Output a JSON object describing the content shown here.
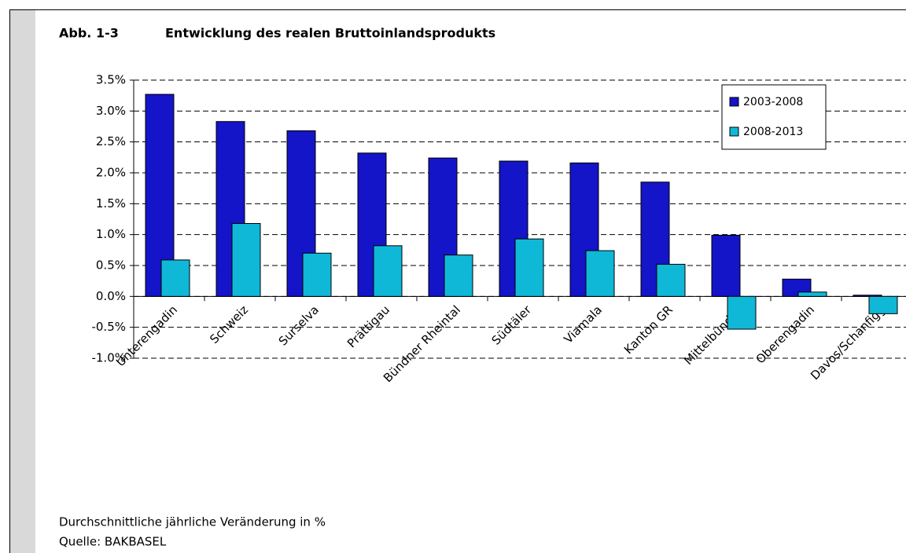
{
  "chart_data": {
    "type": "bar",
    "figure_label": "Abb. 1-3",
    "title": "Entwicklung des realen Bruttoinlandsprodukts",
    "categories": [
      "Unterengadin",
      "Schweiz",
      "Surselva",
      "Prättigau",
      "Bündner Rheintal",
      "Südtäler",
      "Viamala",
      "Kanton GR",
      "Mittelbünden",
      "Oberengadin",
      "Davos/Schanfigg"
    ],
    "series": [
      {
        "name": "2003-2008",
        "color": "#1414c8",
        "values": [
          3.27,
          2.83,
          2.68,
          2.32,
          2.24,
          2.19,
          2.16,
          1.85,
          0.99,
          0.28,
          0.02
        ]
      },
      {
        "name": "2008-2013",
        "color": "#10b8d8",
        "values": [
          0.59,
          1.18,
          0.7,
          0.82,
          0.67,
          0.93,
          0.74,
          0.52,
          -0.53,
          0.07,
          -0.28
        ]
      }
    ],
    "ylim": [
      -1.0,
      3.5
    ],
    "yticks": [
      {
        "value": -1.0,
        "label": "-1.0%"
      },
      {
        "value": -0.5,
        "label": "-0.5%"
      },
      {
        "value": 0,
        "label": "0.0%"
      },
      {
        "value": 0.5,
        "label": "0.5%"
      },
      {
        "value": 1.0,
        "label": "1.0%"
      },
      {
        "value": 1.5,
        "label": "1.5%"
      },
      {
        "value": 2.0,
        "label": "2.0%"
      },
      {
        "value": 2.5,
        "label": "2.5%"
      },
      {
        "value": 3.0,
        "label": "3.0%"
      },
      {
        "value": 3.5,
        "label": "3.5%"
      }
    ],
    "grid": true,
    "legend": "upper right",
    "notes": [
      "Durchschnittliche jährliche Veränderung in %",
      "Quelle: BAKBASEL"
    ]
  }
}
